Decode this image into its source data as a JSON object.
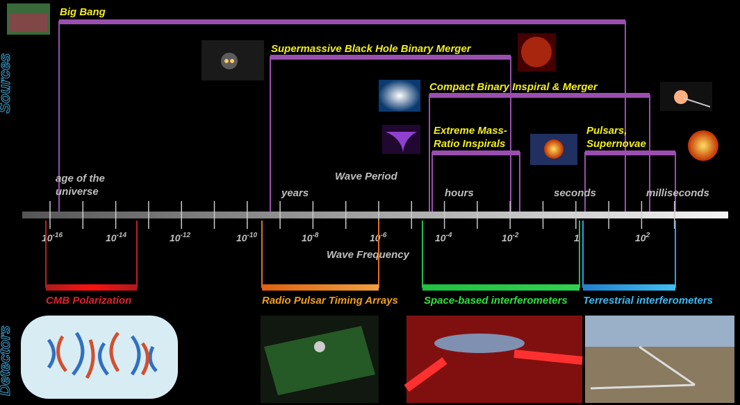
{
  "side_labels": {
    "sources": "Sources",
    "detectors": "Detectors"
  },
  "sources": [
    {
      "label": [
        "Big Bang"
      ]
    },
    {
      "label": [
        "Supermassive Black Hole Binary Merger"
      ]
    },
    {
      "label": [
        "Compact Binary Inspiral & Merger"
      ]
    },
    {
      "label": [
        "Extreme Mass-",
        "Ratio Inspirals"
      ]
    },
    {
      "label": [
        "Pulsars,",
        "Supernovae"
      ]
    }
  ],
  "axis": {
    "period_title": "Wave Period",
    "frequency_title": "Wave Frequency",
    "period_labels": [
      [
        "age of the",
        "universe"
      ],
      [
        "years"
      ],
      [
        "hours"
      ],
      [
        "seconds"
      ],
      [
        "milliseconds"
      ]
    ],
    "frequency_labels": [
      {
        "base": "10",
        "exponent": "-16"
      },
      {
        "base": "10",
        "exponent": "-14"
      },
      {
        "base": "10",
        "exponent": "-12"
      },
      {
        "base": "10",
        "exponent": "-10"
      },
      {
        "base": "10",
        "exponent": "-8"
      },
      {
        "base": "10",
        "exponent": "-6"
      },
      {
        "base": "10",
        "exponent": "-4"
      },
      {
        "base": "10",
        "exponent": "-2"
      },
      {
        "base": "1"
      },
      {
        "base": "10",
        "exponent": "2"
      }
    ]
  },
  "detectors": [
    "CMB Polarization",
    "Radio Pulsar Timing Arrays",
    "Space-based interferometers",
    "Terrestrial interferometers"
  ]
}
